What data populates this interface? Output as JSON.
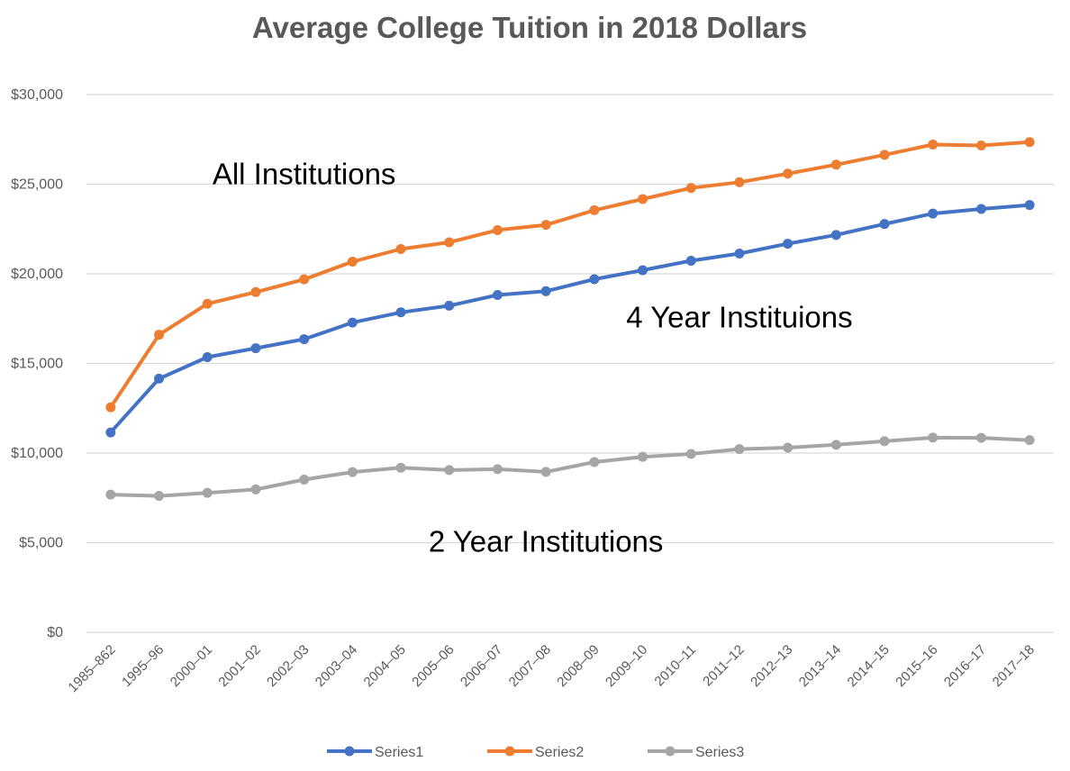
{
  "chart_data": {
    "type": "line",
    "title": "Average College Tuition in 2018 Dollars",
    "xlabel": "",
    "ylabel": "",
    "ylim": [
      0,
      30000
    ],
    "yticks": [
      {
        "value": 0,
        "label": "$0"
      },
      {
        "value": 5000,
        "label": "$5,000"
      },
      {
        "value": 10000,
        "label": "$10,000"
      },
      {
        "value": 15000,
        "label": "$15,000"
      },
      {
        "value": 20000,
        "label": "$20,000"
      },
      {
        "value": 25000,
        "label": "$25,000"
      },
      {
        "value": 30000,
        "label": "$30,000"
      }
    ],
    "grid": true,
    "legend_position": "bottom",
    "categories": [
      "1985–862",
      "1995–96",
      "2000–01",
      "2001–02",
      "2002–03",
      "2003–04",
      "2004–05",
      "2005–06",
      "2006–07",
      "2007–08",
      "2008–09",
      "2009–10",
      "2010–11",
      "2011–12",
      "2012–13",
      "2013–14",
      "2014–15",
      "2015–16",
      "2016–17",
      "2017–18"
    ],
    "series": [
      {
        "name": "Series1",
        "color": "#4472C4",
        "values": [
          11150,
          14150,
          15350,
          15850,
          16350,
          17280,
          17850,
          18220,
          18820,
          19030,
          19700,
          20200,
          20730,
          21130,
          21680,
          22170,
          22780,
          23360,
          23620,
          23840
        ]
      },
      {
        "name": "Series2",
        "color": "#ED7D31",
        "values": [
          12550,
          16600,
          18330,
          18980,
          19690,
          20680,
          21380,
          21760,
          22440,
          22730,
          23550,
          24170,
          24790,
          25110,
          25590,
          26090,
          26640,
          27210,
          27160,
          27350
        ]
      },
      {
        "name": "Series3",
        "color": "#A5A5A5",
        "values": [
          7680,
          7610,
          7780,
          7970,
          8520,
          8940,
          9180,
          9050,
          9100,
          8950,
          9500,
          9790,
          9950,
          10220,
          10300,
          10460,
          10660,
          10860,
          10850,
          10720
        ]
      }
    ],
    "annotations": [
      {
        "text": "All Institutions",
        "x": "2002–03",
        "y": 25000
      },
      {
        "text": "4 Year Instituions",
        "x": "2011–12",
        "y": 17000
      },
      {
        "text": "2 Year Institutions",
        "x": "2007–08",
        "y": 4500
      }
    ]
  }
}
